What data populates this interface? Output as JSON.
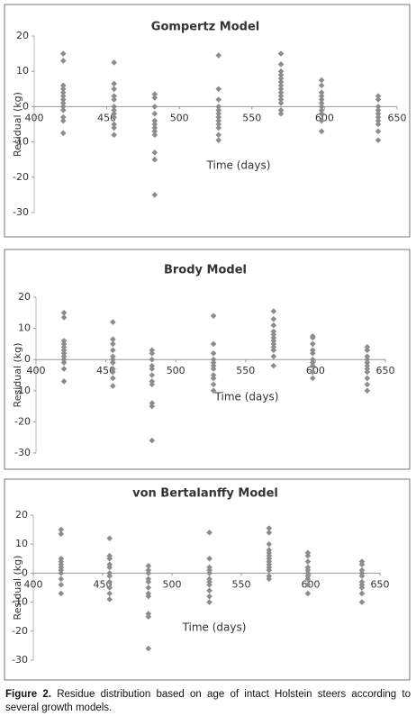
{
  "chart_data": [
    {
      "type": "scatter",
      "title": "Gompertz Model",
      "xlabel": "Time (days)",
      "ylabel": "Residual (kg)",
      "color": "#8c8c8c",
      "xlim": [
        400,
        650
      ],
      "xticks": [
        400,
        450,
        500,
        550,
        600,
        650
      ],
      "ylim": [
        -30,
        20
      ],
      "yticks": [
        -30,
        -20,
        -10,
        0,
        10,
        20
      ],
      "x": [
        420,
        420,
        420,
        420,
        420,
        420,
        420,
        420,
        420,
        420,
        420,
        420,
        420,
        455,
        455,
        455,
        455,
        455,
        455,
        455,
        455,
        455,
        455,
        455,
        455,
        483,
        483,
        483,
        483,
        483,
        483,
        483,
        483,
        483,
        483,
        483,
        483,
        527,
        527,
        527,
        527,
        527,
        527,
        527,
        527,
        527,
        527,
        527,
        527,
        570,
        570,
        570,
        570,
        570,
        570,
        570,
        570,
        570,
        570,
        570,
        570,
        570,
        570,
        598,
        598,
        598,
        598,
        598,
        598,
        598,
        598,
        598,
        598,
        598,
        637,
        637,
        637,
        637,
        637,
        637,
        637,
        637,
        637,
        637
      ],
      "values": [
        15,
        13,
        6,
        5,
        4,
        3,
        2,
        1,
        0,
        -1,
        -3,
        -4,
        -7.5,
        12.5,
        6.5,
        5,
        3,
        2,
        0,
        -1,
        -2,
        -3,
        -5,
        -6,
        -8,
        3.5,
        2.5,
        0,
        -2,
        -4,
        -5,
        -6,
        -7,
        -8,
        -13,
        -15,
        -25,
        14.5,
        5,
        2,
        0,
        -1,
        -2,
        -3,
        -4,
        -5,
        -6,
        -8,
        -9.5,
        15,
        12,
        10,
        9,
        8,
        7,
        6,
        5,
        4,
        3,
        2,
        1,
        -1,
        -2,
        7.5,
        6,
        4,
        3,
        2,
        1,
        0,
        -1,
        -2,
        -4,
        -7,
        3,
        2,
        0,
        -1,
        -2,
        -3,
        -4,
        -5,
        -7,
        -9.5
      ]
    },
    {
      "type": "scatter",
      "title": "Brody Model",
      "xlabel": "Time (days)",
      "ylabel": "Residual (kg)",
      "color": "#8c8c8c",
      "xlim": [
        400,
        650
      ],
      "xticks": [
        400,
        450,
        500,
        550,
        600,
        650
      ],
      "ylim": [
        -30,
        20
      ],
      "yticks": [
        -30,
        -20,
        -10,
        0,
        10,
        20
      ],
      "x": [
        420,
        420,
        420,
        420,
        420,
        420,
        420,
        420,
        420,
        420,
        420,
        420,
        455,
        455,
        455,
        455,
        455,
        455,
        455,
        455,
        455,
        455,
        455,
        483,
        483,
        483,
        483,
        483,
        483,
        483,
        483,
        483,
        483,
        483,
        527,
        527,
        527,
        527,
        527,
        527,
        527,
        527,
        527,
        527,
        527,
        570,
        570,
        570,
        570,
        570,
        570,
        570,
        570,
        570,
        570,
        570,
        570,
        598,
        598,
        598,
        598,
        598,
        598,
        598,
        598,
        598,
        598,
        637,
        637,
        637,
        637,
        637,
        637,
        637,
        637,
        637,
        637,
        637
      ],
      "values": [
        15,
        13.5,
        6,
        5,
        4,
        3,
        2,
        1,
        0,
        -1,
        -3,
        -7,
        12,
        6.5,
        5,
        3,
        1,
        0,
        -1,
        -3,
        -4,
        -6,
        -8.5,
        3,
        2,
        0,
        -2,
        -3,
        -5,
        -7,
        -8,
        -14,
        -15,
        -26,
        14,
        5,
        2,
        0,
        -1,
        -2,
        -3,
        -5,
        -6,
        -8,
        -10,
        15.5,
        13,
        11,
        9,
        8,
        7,
        6,
        5,
        4,
        3,
        1,
        -2,
        7.5,
        7,
        5,
        3,
        2,
        0,
        -1,
        -2,
        -4,
        -6,
        4,
        3,
        1,
        0,
        -1,
        -2,
        -3,
        -4,
        -6,
        -8,
        -10
      ]
    },
    {
      "type": "scatter",
      "title": "von Bertalanffy Model",
      "xlabel": "Time (days)",
      "ylabel": "Residual (kg)",
      "color": "#8c8c8c",
      "xlim": [
        400,
        650
      ],
      "xticks": [
        400,
        450,
        500,
        550,
        600,
        650
      ],
      "ylim": [
        -30,
        20
      ],
      "yticks": [
        -30,
        -20,
        -10,
        0,
        10,
        20
      ],
      "x": [
        420,
        420,
        420,
        420,
        420,
        420,
        420,
        420,
        420,
        420,
        420,
        455,
        455,
        455,
        455,
        455,
        455,
        455,
        455,
        455,
        455,
        455,
        483,
        483,
        483,
        483,
        483,
        483,
        483,
        483,
        483,
        483,
        483,
        527,
        527,
        527,
        527,
        527,
        527,
        527,
        527,
        527,
        527,
        527,
        570,
        570,
        570,
        570,
        570,
        570,
        570,
        570,
        570,
        570,
        570,
        570,
        570,
        598,
        598,
        598,
        598,
        598,
        598,
        598,
        598,
        598,
        598,
        637,
        637,
        637,
        637,
        637,
        637,
        637,
        637,
        637,
        637
      ],
      "values": [
        15,
        13.5,
        5,
        4,
        3,
        2,
        1,
        0,
        -2,
        -4,
        -7,
        12,
        6,
        5,
        3,
        2,
        0,
        -1,
        -3,
        -5,
        -7,
        -9,
        2.5,
        1,
        0,
        -2,
        -3,
        -5,
        -7,
        -8,
        -14,
        -15,
        -26,
        14,
        5,
        2,
        1,
        0,
        -2,
        -3,
        -4,
        -6,
        -8,
        -10,
        15.5,
        14,
        10,
        8,
        7,
        6,
        5,
        4,
        3,
        2,
        1,
        -1,
        -2,
        7,
        6,
        4,
        2,
        1,
        0,
        -1,
        -2,
        -4,
        -7,
        4,
        3,
        1,
        0,
        -1,
        -3,
        -4,
        -5,
        -7,
        -10
      ]
    }
  ],
  "caption": {
    "label": "Figure 2.",
    "text": "Residue distribution based on age of intact Holstein steers according to several growth models."
  }
}
